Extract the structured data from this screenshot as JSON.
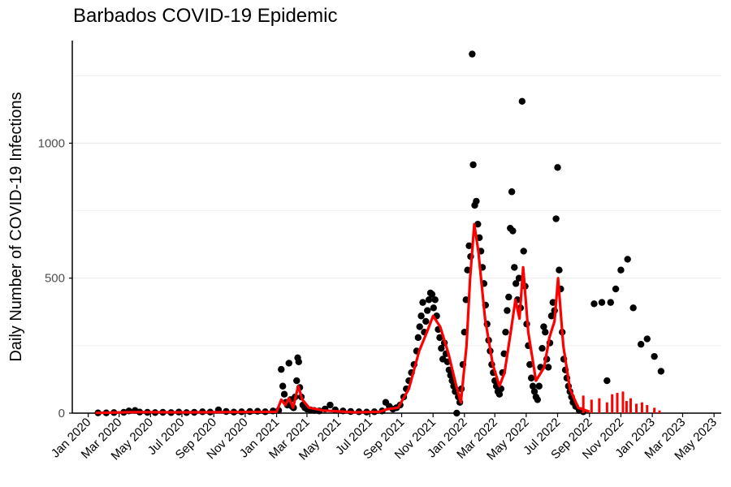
{
  "chart_data": {
    "type": "scatter",
    "title": "Barbados COVID-19 Epidemic",
    "xlabel": "",
    "ylabel": "Daily Number of COVID-19 Infections",
    "x_axis": {
      "type": "date",
      "range": [
        "2019-12-01",
        "2023-05-15"
      ]
    },
    "ylim": [
      0,
      1380
    ],
    "yticks": [
      0,
      500,
      1000
    ],
    "xticks": [
      {
        "date": "2020-01-01",
        "label": "Jan 2020"
      },
      {
        "date": "2020-03-01",
        "label": "Mar 2020"
      },
      {
        "date": "2020-05-01",
        "label": "May 2020"
      },
      {
        "date": "2020-07-01",
        "label": "Jul 2020"
      },
      {
        "date": "2020-09-01",
        "label": "Sep 2020"
      },
      {
        "date": "2020-11-01",
        "label": "Nov 2020"
      },
      {
        "date": "2021-01-01",
        "label": "Jan 2021"
      },
      {
        "date": "2021-03-01",
        "label": "Mar 2021"
      },
      {
        "date": "2021-05-01",
        "label": "May 2021"
      },
      {
        "date": "2021-07-01",
        "label": "Jul 2021"
      },
      {
        "date": "2021-09-01",
        "label": "Sep 2021"
      },
      {
        "date": "2021-11-01",
        "label": "Nov 2021"
      },
      {
        "date": "2022-01-01",
        "label": "Jan 2022"
      },
      {
        "date": "2022-03-01",
        "label": "Mar 2022"
      },
      {
        "date": "2022-05-01",
        "label": "May 2022"
      },
      {
        "date": "2022-07-01",
        "label": "Jul 2022"
      },
      {
        "date": "2022-09-01",
        "label": "Sep 2022"
      },
      {
        "date": "2022-11-01",
        "label": "Nov 2022"
      },
      {
        "date": "2023-01-01",
        "label": "Jan 2023"
      },
      {
        "date": "2023-03-01",
        "label": "Mar 2023"
      },
      {
        "date": "2023-05-01",
        "label": "May 2023"
      }
    ],
    "grid": {
      "major_y": true,
      "minor_y": true,
      "x": false
    },
    "colors": {
      "points": "#000000",
      "smooth_line": "#ff0000",
      "grid": "#ebebeb"
    },
    "series": [
      {
        "kind": "points",
        "color": "#000000",
        "points": [
          [
            "2020-01-20",
            1
          ],
          [
            "2020-02-05",
            1
          ],
          [
            "2020-02-20",
            2
          ],
          [
            "2020-03-10",
            3
          ],
          [
            "2020-03-20",
            8
          ],
          [
            "2020-04-01",
            10
          ],
          [
            "2020-04-10",
            4
          ],
          [
            "2020-04-25",
            3
          ],
          [
            "2020-05-10",
            2
          ],
          [
            "2020-05-25",
            3
          ],
          [
            "2020-06-10",
            2
          ],
          [
            "2020-06-25",
            4
          ],
          [
            "2020-07-10",
            2
          ],
          [
            "2020-07-25",
            3
          ],
          [
            "2020-08-10",
            5
          ],
          [
            "2020-08-25",
            4
          ],
          [
            "2020-09-10",
            12
          ],
          [
            "2020-09-25",
            6
          ],
          [
            "2020-10-10",
            4
          ],
          [
            "2020-10-25",
            5
          ],
          [
            "2020-11-10",
            6
          ],
          [
            "2020-11-25",
            7
          ],
          [
            "2020-12-10",
            5
          ],
          [
            "2020-12-25",
            8
          ],
          [
            "2021-01-05",
            10
          ],
          [
            "2021-01-10",
            162
          ],
          [
            "2021-01-13",
            100
          ],
          [
            "2021-01-16",
            70
          ],
          [
            "2021-01-19",
            40
          ],
          [
            "2021-01-22",
            30
          ],
          [
            "2021-01-25",
            185
          ],
          [
            "2021-01-28",
            50
          ],
          [
            "2021-01-31",
            25
          ],
          [
            "2021-02-03",
            20
          ],
          [
            "2021-02-06",
            60
          ],
          [
            "2021-02-09",
            120
          ],
          [
            "2021-02-11",
            205
          ],
          [
            "2021-02-13",
            190
          ],
          [
            "2021-02-15",
            95
          ],
          [
            "2021-02-18",
            60
          ],
          [
            "2021-02-21",
            30
          ],
          [
            "2021-02-25",
            20
          ],
          [
            "2021-03-01",
            15
          ],
          [
            "2021-03-08",
            12
          ],
          [
            "2021-03-15",
            10
          ],
          [
            "2021-03-25",
            8
          ],
          [
            "2021-04-05",
            15
          ],
          [
            "2021-04-15",
            30
          ],
          [
            "2021-04-25",
            12
          ],
          [
            "2021-05-10",
            8
          ],
          [
            "2021-05-25",
            6
          ],
          [
            "2021-06-10",
            5
          ],
          [
            "2021-06-25",
            4
          ],
          [
            "2021-07-10",
            5
          ],
          [
            "2021-07-25",
            8
          ],
          [
            "2021-08-01",
            40
          ],
          [
            "2021-08-08",
            25
          ],
          [
            "2021-08-15",
            15
          ],
          [
            "2021-08-22",
            20
          ],
          [
            "2021-08-29",
            30
          ],
          [
            "2021-09-05",
            60
          ],
          [
            "2021-09-10",
            90
          ],
          [
            "2021-09-15",
            120
          ],
          [
            "2021-09-20",
            150
          ],
          [
            "2021-09-25",
            180
          ],
          [
            "2021-09-30",
            230
          ],
          [
            "2021-10-03",
            280
          ],
          [
            "2021-10-06",
            320
          ],
          [
            "2021-10-09",
            360
          ],
          [
            "2021-10-12",
            410
          ],
          [
            "2021-10-15",
            300
          ],
          [
            "2021-10-18",
            340
          ],
          [
            "2021-10-21",
            380
          ],
          [
            "2021-10-24",
            420
          ],
          [
            "2021-10-27",
            445
          ],
          [
            "2021-10-30",
            440
          ],
          [
            "2021-11-02",
            390
          ],
          [
            "2021-11-05",
            420
          ],
          [
            "2021-11-08",
            360
          ],
          [
            "2021-11-11",
            310
          ],
          [
            "2021-11-14",
            280
          ],
          [
            "2021-11-17",
            240
          ],
          [
            "2021-11-20",
            200
          ],
          [
            "2021-11-23",
            260
          ],
          [
            "2021-11-26",
            220
          ],
          [
            "2021-11-29",
            190
          ],
          [
            "2021-12-02",
            160
          ],
          [
            "2021-12-05",
            140
          ],
          [
            "2021-12-08",
            120
          ],
          [
            "2021-12-11",
            100
          ],
          [
            "2021-12-14",
            80
          ],
          [
            "2021-12-17",
            0
          ],
          [
            "2021-12-20",
            60
          ],
          [
            "2021-12-23",
            40
          ],
          [
            "2021-12-26",
            90
          ],
          [
            "2021-12-29",
            180
          ],
          [
            "2022-01-01",
            300
          ],
          [
            "2022-01-04",
            420
          ],
          [
            "2022-01-07",
            530
          ],
          [
            "2022-01-10",
            620
          ],
          [
            "2022-01-13",
            580
          ],
          [
            "2022-01-16",
            1330
          ],
          [
            "2022-01-18",
            920
          ],
          [
            "2022-01-21",
            770
          ],
          [
            "2022-01-24",
            785
          ],
          [
            "2022-01-27",
            700
          ],
          [
            "2022-01-30",
            650
          ],
          [
            "2022-02-02",
            600
          ],
          [
            "2022-02-05",
            540
          ],
          [
            "2022-02-08",
            480
          ],
          [
            "2022-02-11",
            400
          ],
          [
            "2022-02-14",
            330
          ],
          [
            "2022-02-17",
            270
          ],
          [
            "2022-02-20",
            230
          ],
          [
            "2022-02-23",
            180
          ],
          [
            "2022-02-26",
            150
          ],
          [
            "2022-03-01",
            120
          ],
          [
            "2022-03-04",
            100
          ],
          [
            "2022-03-07",
            80
          ],
          [
            "2022-03-10",
            70
          ],
          [
            "2022-03-13",
            90
          ],
          [
            "2022-03-16",
            150
          ],
          [
            "2022-03-19",
            220
          ],
          [
            "2022-03-22",
            300
          ],
          [
            "2022-03-25",
            380
          ],
          [
            "2022-03-28",
            430
          ],
          [
            "2022-03-31",
            685
          ],
          [
            "2022-04-03",
            820
          ],
          [
            "2022-04-05",
            675
          ],
          [
            "2022-04-08",
            540
          ],
          [
            "2022-04-11",
            480
          ],
          [
            "2022-04-14",
            420
          ],
          [
            "2022-04-17",
            500
          ],
          [
            "2022-04-20",
            390
          ],
          [
            "2022-04-23",
            1155
          ],
          [
            "2022-04-26",
            600
          ],
          [
            "2022-04-29",
            470
          ],
          [
            "2022-05-02",
            330
          ],
          [
            "2022-05-05",
            250
          ],
          [
            "2022-05-08",
            180
          ],
          [
            "2022-05-11",
            130
          ],
          [
            "2022-05-14",
            100
          ],
          [
            "2022-05-17",
            80
          ],
          [
            "2022-05-20",
            60
          ],
          [
            "2022-05-23",
            50
          ],
          [
            "2022-05-26",
            100
          ],
          [
            "2022-05-29",
            170
          ],
          [
            "2022-06-01",
            240
          ],
          [
            "2022-06-04",
            320
          ],
          [
            "2022-06-07",
            300
          ],
          [
            "2022-06-10",
            200
          ],
          [
            "2022-06-13",
            170
          ],
          [
            "2022-06-16",
            260
          ],
          [
            "2022-06-19",
            360
          ],
          [
            "2022-06-22",
            410
          ],
          [
            "2022-06-25",
            380
          ],
          [
            "2022-06-28",
            720
          ],
          [
            "2022-07-01",
            910
          ],
          [
            "2022-07-04",
            530
          ],
          [
            "2022-07-07",
            460
          ],
          [
            "2022-07-10",
            300
          ],
          [
            "2022-07-13",
            200
          ],
          [
            "2022-07-16",
            160
          ],
          [
            "2022-07-19",
            130
          ],
          [
            "2022-07-22",
            100
          ],
          [
            "2022-07-25",
            80
          ],
          [
            "2022-07-28",
            60
          ],
          [
            "2022-07-31",
            40
          ],
          [
            "2022-08-05",
            25
          ],
          [
            "2022-08-12",
            10
          ],
          [
            "2022-08-20",
            5
          ],
          [
            "2022-09-10",
            405
          ],
          [
            "2022-09-25",
            410
          ],
          [
            "2022-10-05",
            120
          ],
          [
            "2022-10-12",
            410
          ],
          [
            "2022-10-22",
            460
          ],
          [
            "2022-11-01",
            530
          ],
          [
            "2022-11-14",
            570
          ],
          [
            "2022-11-25",
            390
          ],
          [
            "2022-12-10",
            255
          ],
          [
            "2022-12-22",
            275
          ],
          [
            "2023-01-05",
            210
          ],
          [
            "2023-01-18",
            155
          ]
        ]
      },
      {
        "kind": "smooth_line",
        "color": "#ff0000",
        "points": [
          [
            "2020-01-15",
            1
          ],
          [
            "2020-04-01",
            4
          ],
          [
            "2020-07-01",
            3
          ],
          [
            "2020-10-01",
            4
          ],
          [
            "2021-01-01",
            5
          ],
          [
            "2021-01-10",
            50
          ],
          [
            "2021-01-18",
            30
          ],
          [
            "2021-01-25",
            55
          ],
          [
            "2021-02-02",
            20
          ],
          [
            "2021-02-12",
            100
          ],
          [
            "2021-02-20",
            50
          ],
          [
            "2021-03-05",
            20
          ],
          [
            "2021-04-01",
            10
          ],
          [
            "2021-06-01",
            3
          ],
          [
            "2021-07-20",
            5
          ],
          [
            "2021-08-05",
            15
          ],
          [
            "2021-08-25",
            20
          ],
          [
            "2021-09-15",
            90
          ],
          [
            "2021-10-05",
            230
          ],
          [
            "2021-10-20",
            300
          ],
          [
            "2021-11-01",
            360
          ],
          [
            "2021-11-15",
            320
          ],
          [
            "2021-12-01",
            220
          ],
          [
            "2021-12-15",
            110
          ],
          [
            "2021-12-25",
            40
          ],
          [
            "2022-01-05",
            250
          ],
          [
            "2022-01-12",
            500
          ],
          [
            "2022-01-20",
            700
          ],
          [
            "2022-01-28",
            600
          ],
          [
            "2022-02-10",
            350
          ],
          [
            "2022-02-25",
            180
          ],
          [
            "2022-03-10",
            100
          ],
          [
            "2022-03-20",
            150
          ],
          [
            "2022-04-01",
            300
          ],
          [
            "2022-04-10",
            420
          ],
          [
            "2022-04-18",
            350
          ],
          [
            "2022-04-25",
            540
          ],
          [
            "2022-05-05",
            300
          ],
          [
            "2022-05-20",
            120
          ],
          [
            "2022-06-05",
            170
          ],
          [
            "2022-06-15",
            280
          ],
          [
            "2022-06-25",
            340
          ],
          [
            "2022-07-02",
            500
          ],
          [
            "2022-07-12",
            250
          ],
          [
            "2022-07-25",
            90
          ],
          [
            "2022-08-10",
            20
          ],
          [
            "2022-09-01",
            5
          ]
        ]
      },
      {
        "kind": "spikes",
        "color": "#ff0000",
        "points": [
          [
            "2022-08-20",
            65
          ],
          [
            "2022-09-05",
            50
          ],
          [
            "2022-09-20",
            55
          ],
          [
            "2022-10-05",
            40
          ],
          [
            "2022-10-15",
            70
          ],
          [
            "2022-10-25",
            75
          ],
          [
            "2022-11-05",
            80
          ],
          [
            "2022-11-12",
            45
          ],
          [
            "2022-11-20",
            55
          ],
          [
            "2022-12-01",
            35
          ],
          [
            "2022-12-12",
            40
          ],
          [
            "2022-12-22",
            30
          ],
          [
            "2023-01-05",
            20
          ],
          [
            "2023-01-15",
            10
          ]
        ]
      }
    ]
  }
}
